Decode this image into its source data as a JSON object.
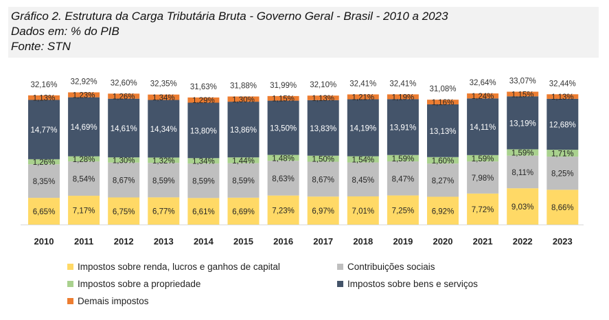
{
  "header": {
    "title": "Gráfico 2. Estrutura da Carga Tributária Bruta - Governo Geral - Brasil - 2010 a 2023",
    "units": "Dados em: % do PIB",
    "source": "Fonte: STN"
  },
  "chart_data": {
    "type": "bar",
    "stacked": true,
    "categories": [
      "2010",
      "2011",
      "2012",
      "2013",
      "2014",
      "2015",
      "2016",
      "2017",
      "2018",
      "2019",
      "2020",
      "2021",
      "2022",
      "2023"
    ],
    "totals": [
      32.16,
      32.92,
      32.6,
      32.35,
      31.63,
      31.88,
      31.99,
      32.1,
      32.41,
      32.41,
      31.08,
      32.64,
      33.07,
      32.44
    ],
    "totals_labels": [
      "32,16%",
      "32,92%",
      "32,60%",
      "32,35%",
      "31,63%",
      "31,88%",
      "31,99%",
      "32,10%",
      "32,41%",
      "32,41%",
      "31,08%",
      "32,64%",
      "33,07%",
      "32,44%"
    ],
    "series": [
      {
        "name": "Impostos sobre renda, lucros e ganhos de capital",
        "color": "#FFD966",
        "values": [
          6.65,
          7.17,
          6.75,
          6.77,
          6.61,
          6.69,
          7.23,
          6.97,
          7.01,
          7.25,
          6.92,
          7.72,
          9.03,
          8.66
        ],
        "labels": [
          "6,65%",
          "7,17%",
          "6,75%",
          "6,77%",
          "6,61%",
          "6,69%",
          "7,23%",
          "6,97%",
          "7,01%",
          "7,25%",
          "6,92%",
          "7,72%",
          "9,03%",
          "8,66%"
        ]
      },
      {
        "name": "Contribuições sociais",
        "color": "#BFBFBF",
        "values": [
          8.35,
          8.54,
          8.67,
          8.59,
          8.59,
          8.59,
          8.63,
          8.67,
          8.45,
          8.47,
          8.27,
          7.98,
          8.11,
          8.25
        ],
        "labels": [
          "8,35%",
          "8,54%",
          "8,67%",
          "8,59%",
          "8,59%",
          "8,59%",
          "8,63%",
          "8,67%",
          "8,45%",
          "8,47%",
          "8,27%",
          "7,98%",
          "8,11%",
          "8,25%"
        ]
      },
      {
        "name": "Impostos sobre a propriedade",
        "color": "#A9D18E",
        "values": [
          1.26,
          1.28,
          1.3,
          1.32,
          1.34,
          1.44,
          1.48,
          1.5,
          1.54,
          1.59,
          1.6,
          1.59,
          1.59,
          1.71
        ],
        "labels": [
          "1,26%",
          "1,28%",
          "1,30%",
          "1,32%",
          "1,34%",
          "1,44%",
          "1,48%",
          "1,50%",
          "1,54%",
          "1,59%",
          "1,60%",
          "1,59%",
          "1,59%",
          "1,71%"
        ]
      },
      {
        "name": "Impostos sobre bens e serviços",
        "color": "#44546A",
        "values": [
          14.77,
          14.69,
          14.61,
          14.34,
          13.8,
          13.86,
          13.5,
          13.83,
          14.19,
          13.91,
          13.13,
          14.11,
          13.19,
          12.68
        ],
        "labels": [
          "14,77%",
          "14,69%",
          "14,61%",
          "14,34%",
          "13,80%",
          "13,86%",
          "13,50%",
          "13,83%",
          "14,19%",
          "13,91%",
          "13,13%",
          "14,11%",
          "13,19%",
          "12,68%"
        ]
      },
      {
        "name": "Demais impostos",
        "color": "#ED7D31",
        "values": [
          1.13,
          1.23,
          1.26,
          1.34,
          1.29,
          1.3,
          1.15,
          1.13,
          1.21,
          1.19,
          1.16,
          1.24,
          1.15,
          1.13
        ],
        "labels": [
          "1,13%",
          "1,23%",
          "1,26%",
          "1,34%",
          "1,29%",
          "1,30%",
          "1,15%",
          "1,13%",
          "1,21%",
          "1,19%",
          "1,16%",
          "1,24%",
          "1,15%",
          "1,13%"
        ]
      }
    ],
    "legend": {
      "placement": "bottom",
      "order": [
        "Impostos sobre renda, lucros e ganhos de capital",
        "Contribuições sociais",
        "Impostos sobre a propriedade",
        "Impostos sobre bens e serviços",
        "Demais impostos"
      ]
    },
    "grid": false
  }
}
